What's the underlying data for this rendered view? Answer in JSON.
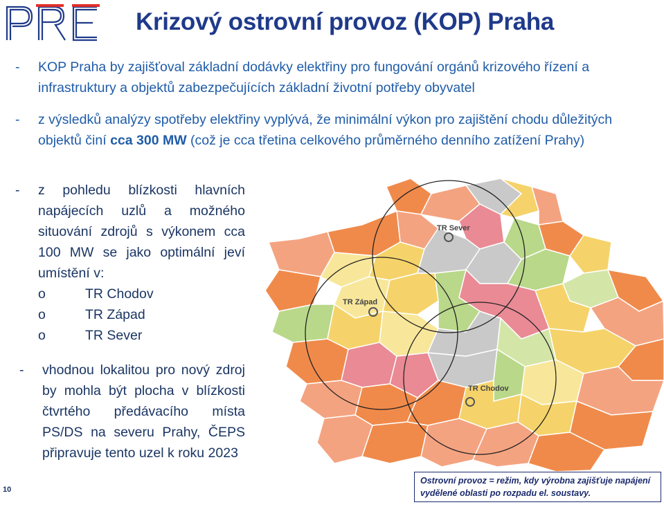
{
  "logo": {
    "text": "PRE"
  },
  "title": "Krizový ostrovní provoz (KOP) Praha",
  "bullets": {
    "dash": "-",
    "b1": "KOP Praha by zajišťoval základní dodávky elektřiny pro fungování orgánů krizového řízení a infrastruktury a objektů zabezpečujících základní životní potřeby obyvatel",
    "b2_pre": "z výsledků analýzy spotřeby elektřiny vyplývá, že minimální výkon pro zajištění chodu důležitých objektů činí ",
    "b2_bold": "cca 300 MW",
    "b2_post": " (což je cca třetina celkového průměrného denního zatížení Prahy)",
    "b3": "z pohledu blízkosti hlavních napájecích uzlů a možného situování zdrojů s výkonem cca 100 MW se jako optimální jeví umístění v:",
    "b3_items": [
      "TR Chodov",
      "TR Západ",
      "TR Sever"
    ],
    "sub_marker": "o",
    "b4": "vhodnou lokalitou pro nový zdroj by mohla být plocha v blízkosti čtvrtého předávacího místa PS/DS na severu Prahy, ČEPS připravuje tento uzel k roku 2023"
  },
  "map": {
    "labels": {
      "sever": "TR Sever",
      "zapad": "TR Západ",
      "chodov": "TR Chodov"
    },
    "colors": {
      "orange": "#f08a4b",
      "salmon": "#f4a380",
      "pink": "#e98a95",
      "yellow": "#f5d36a",
      "lightyellow": "#f8e79a",
      "grey": "#c9c9c9",
      "green": "#b9d88a",
      "lightgreen": "#d3e6a8"
    }
  },
  "note": "Ostrovní provoz = režim, kdy výrobna zajišťuje napájení vydělené oblasti po rozpadu el. soustavy.",
  "page_number": "10"
}
